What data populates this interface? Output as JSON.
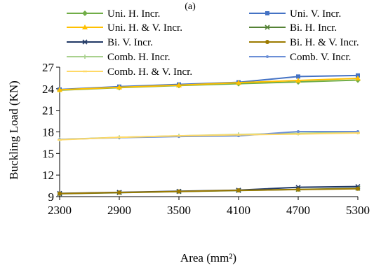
{
  "chart_data": {
    "type": "line",
    "title": "",
    "subtitle": "(a)",
    "xlabel": "Area (mm²)",
    "ylabel": "Buckling Load (KN)",
    "x": [
      2300,
      2900,
      3500,
      4100,
      4700,
      5300
    ],
    "xlim": [
      2300,
      5300
    ],
    "ylim": [
      9,
      27
    ],
    "xticks": [
      "2300",
      "2900",
      "3500",
      "4100",
      "4700",
      "5300"
    ],
    "yticks": [
      "9",
      "12",
      "15",
      "18",
      "21",
      "24",
      "27"
    ],
    "grid": false,
    "legend_position": "top",
    "series": [
      {
        "name": "Uni. H. Incr.",
        "color": "#70ad47",
        "marker": "diamond",
        "values": [
          23.8,
          24.15,
          24.45,
          24.7,
          24.95,
          25.2
        ]
      },
      {
        "name": "Uni. V. Incr.",
        "color": "#4472c4",
        "marker": "square",
        "values": [
          23.9,
          24.3,
          24.6,
          24.9,
          25.7,
          25.85
        ]
      },
      {
        "name": "Uni. H. & V. Incr.",
        "color": "#ffc000",
        "marker": "triangle",
        "values": [
          23.85,
          24.2,
          24.5,
          24.85,
          25.15,
          25.45
        ]
      },
      {
        "name": "Bi. H. Incr.",
        "color": "#548235",
        "marker": "x",
        "values": [
          9.4,
          9.55,
          9.7,
          9.85,
          10.0,
          10.15
        ]
      },
      {
        "name": "Bi. V. Incr.",
        "color": "#203864",
        "marker": "x",
        "values": [
          9.45,
          9.6,
          9.75,
          9.9,
          10.3,
          10.4
        ]
      },
      {
        "name": "Bi. H. & V. Incr.",
        "color": "#9c7a00",
        "marker": "circle",
        "values": [
          9.42,
          9.57,
          9.72,
          9.88,
          9.98,
          10.1
        ]
      },
      {
        "name": "Comb. H. Incr.",
        "color": "#a9d18e",
        "marker": "plus",
        "values": [
          16.95,
          17.25,
          17.45,
          17.65,
          17.8,
          17.95
        ]
      },
      {
        "name": "Comb. V. Incr.",
        "color": "#6b8fd6",
        "marker": "dot",
        "values": [
          16.95,
          17.2,
          17.35,
          17.45,
          18.05,
          18.05
        ]
      },
      {
        "name": "Comb. H. & V. Incr.",
        "color": "#ffd966",
        "marker": "dash",
        "values": [
          16.9,
          17.25,
          17.45,
          17.6,
          17.7,
          17.85
        ]
      }
    ]
  }
}
